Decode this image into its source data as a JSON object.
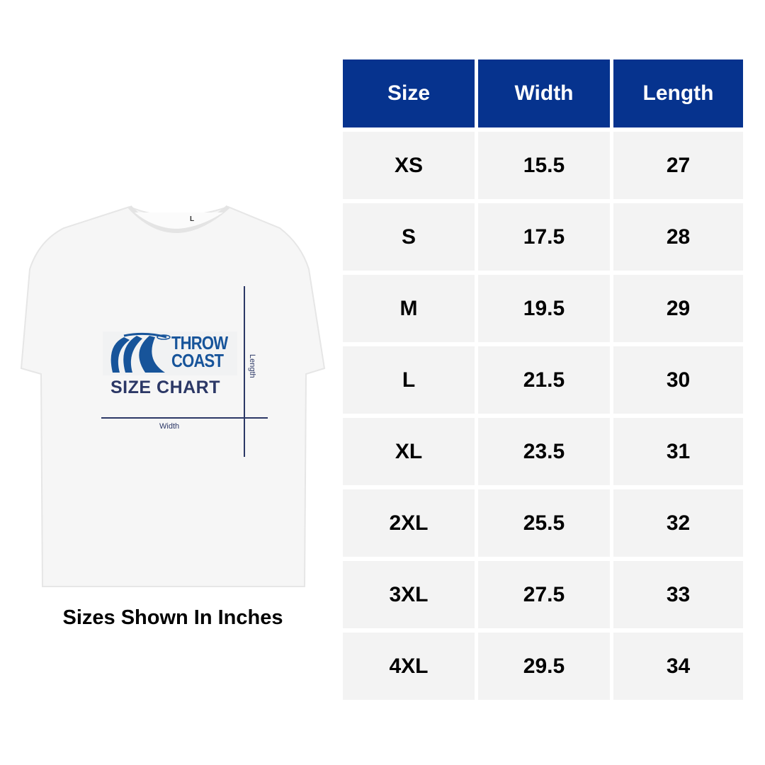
{
  "shirt": {
    "brand_line1": "THROW",
    "brand_line2": "COAST",
    "chart_title": "SIZE CHART",
    "length_label": "Length",
    "width_label": "Width",
    "tag_size": "L"
  },
  "caption": "Sizes Shown In Inches",
  "colors": {
    "header_bg": "#06338e",
    "cell_bg": "#f3f3f3",
    "brand": "#17549a"
  },
  "table": {
    "headers": [
      "Size",
      "Width",
      "Length"
    ],
    "rows": [
      [
        "XS",
        "15.5",
        "27"
      ],
      [
        "S",
        "17.5",
        "28"
      ],
      [
        "M",
        "19.5",
        "29"
      ],
      [
        "L",
        "21.5",
        "30"
      ],
      [
        "XL",
        "23.5",
        "31"
      ],
      [
        "2XL",
        "25.5",
        "32"
      ],
      [
        "3XL",
        "27.5",
        "33"
      ],
      [
        "4XL",
        "29.5",
        "34"
      ]
    ]
  }
}
